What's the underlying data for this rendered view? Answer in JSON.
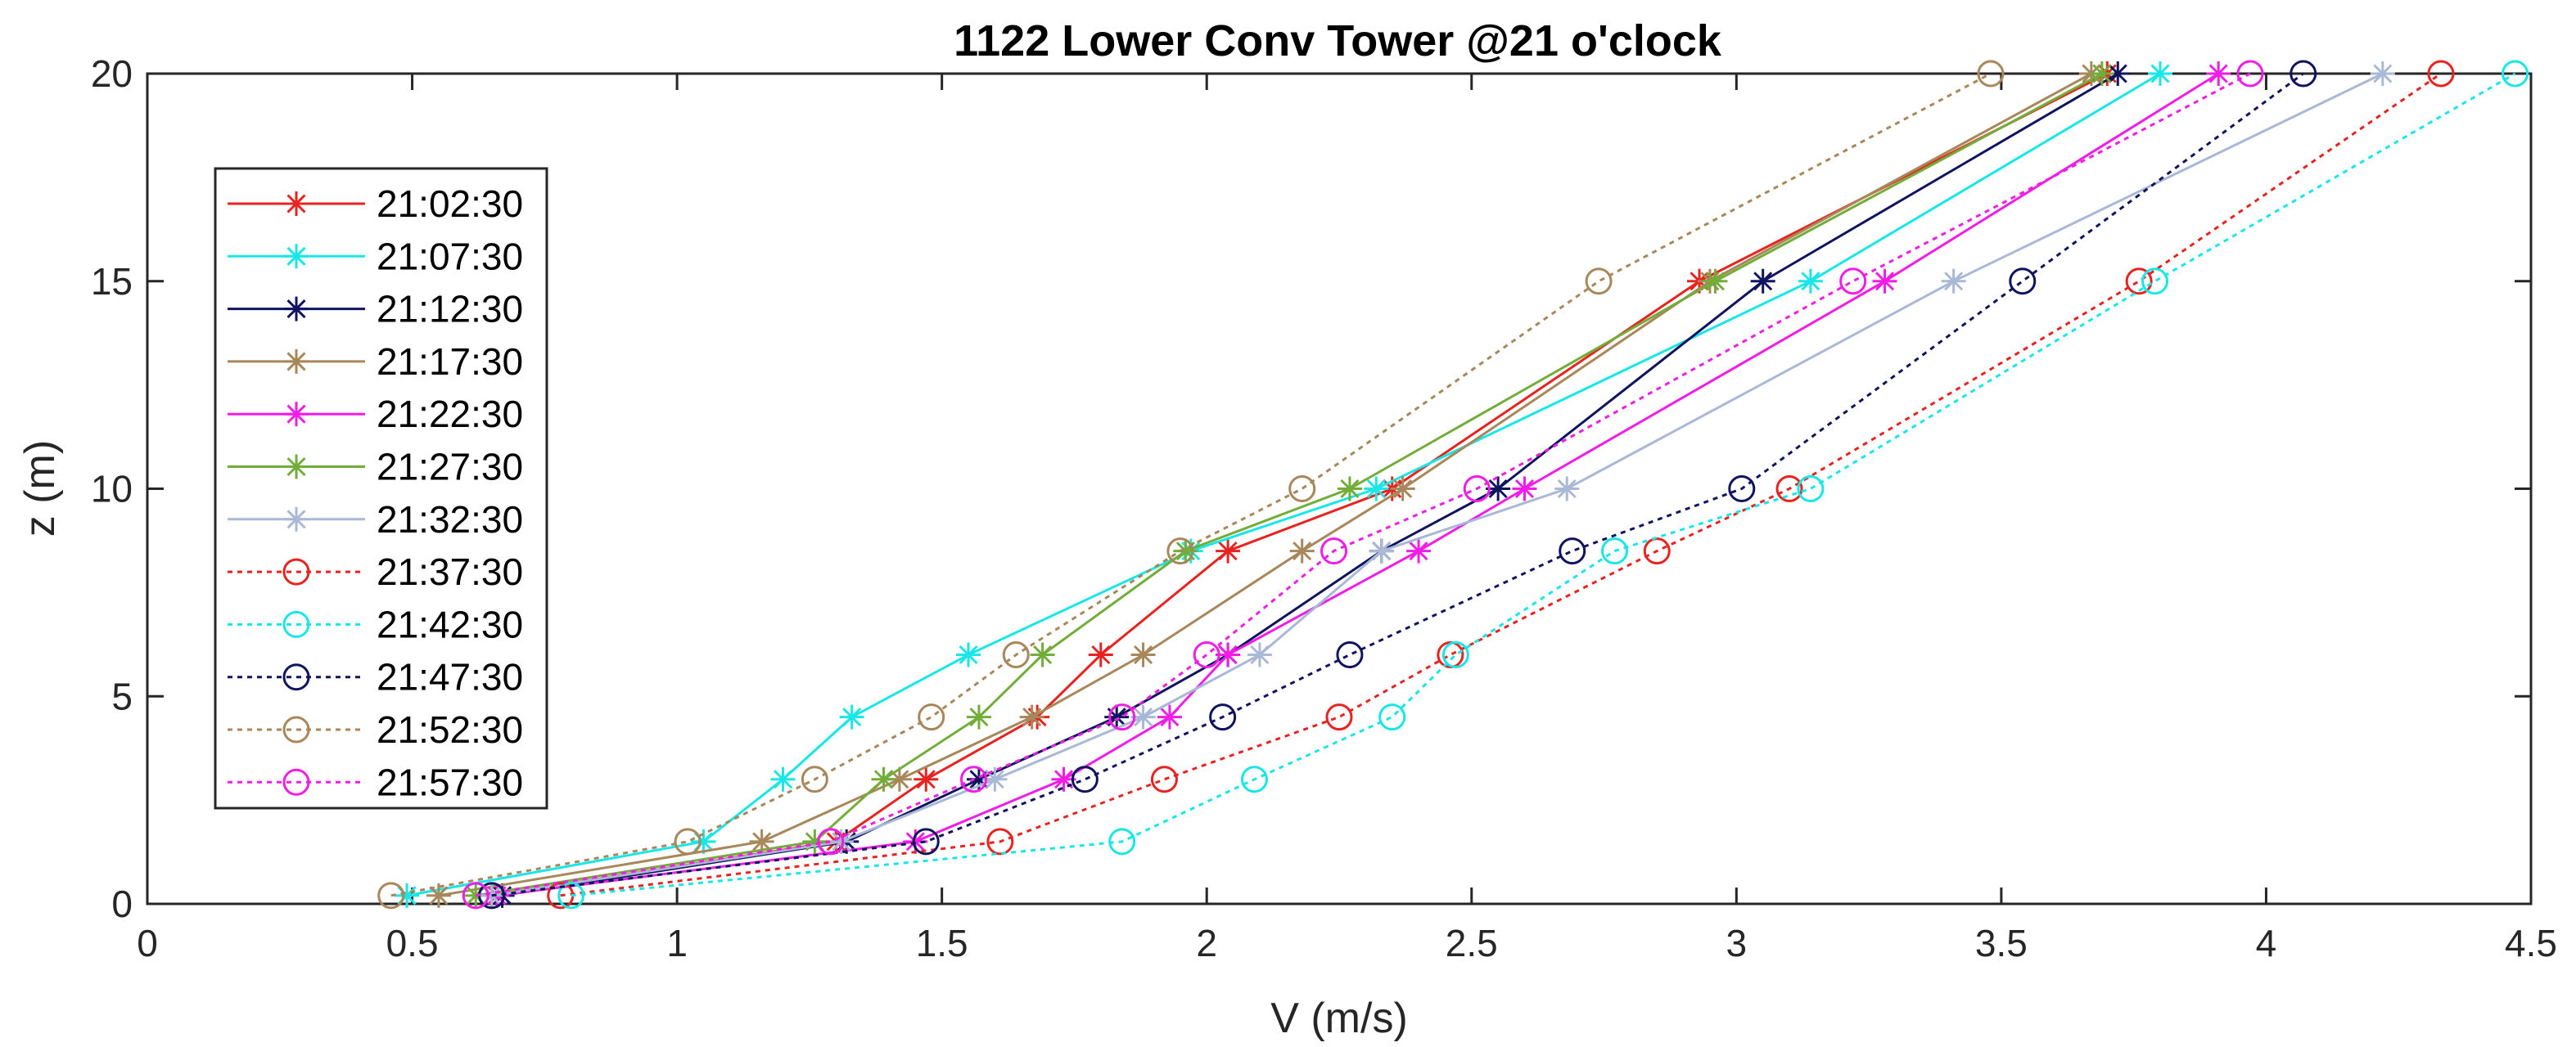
{
  "chart_data": {
    "type": "line",
    "title": "1122 Lower Conv Tower @21 o'clock",
    "xlabel": "V (m/s)",
    "ylabel": "z (m)",
    "xlim": [
      0,
      4.5
    ],
    "ylim": [
      0,
      20
    ],
    "xticks": [
      0,
      0.5,
      1,
      1.5,
      2,
      2.5,
      3,
      3.5,
      4,
      4.5
    ],
    "xtick_labels": [
      "0",
      "0.5",
      "1",
      "1.5",
      "2",
      "2.5",
      "3",
      "3.5",
      "4",
      "4.5"
    ],
    "yticks": [
      0,
      5,
      10,
      15,
      20
    ],
    "ytick_labels": [
      "0",
      "5",
      "10",
      "15",
      "20"
    ],
    "grid": false,
    "legend_position": "upper-left",
    "series": [
      {
        "name": "21:02:30",
        "color": "#e8231f",
        "marker": "asterisk",
        "dash": "solid",
        "points": [
          [
            0.65,
            0.2
          ],
          [
            1.3,
            1.5
          ],
          [
            1.47,
            3
          ],
          [
            1.68,
            4.5
          ],
          [
            1.8,
            6
          ],
          [
            2.04,
            8.5
          ],
          [
            2.35,
            10
          ],
          [
            2.93,
            15
          ],
          [
            3.7,
            20
          ]
        ]
      },
      {
        "name": "21:07:30",
        "color": "#19e6e6",
        "marker": "asterisk",
        "dash": "solid",
        "points": [
          [
            0.49,
            0.2
          ],
          [
            1.05,
            1.5
          ],
          [
            1.2,
            3
          ],
          [
            1.33,
            4.5
          ],
          [
            1.55,
            6
          ],
          [
            1.97,
            8.5
          ],
          [
            2.32,
            10
          ],
          [
            3.14,
            15
          ],
          [
            3.8,
            20
          ]
        ]
      },
      {
        "name": "21:12:30",
        "color": "#10145e",
        "marker": "asterisk",
        "dash": "solid",
        "points": [
          [
            0.67,
            0.2
          ],
          [
            1.32,
            1.5
          ],
          [
            1.57,
            3
          ],
          [
            1.83,
            4.5
          ],
          [
            2.04,
            6
          ],
          [
            2.33,
            8.5
          ],
          [
            2.55,
            10
          ],
          [
            3.05,
            15
          ],
          [
            3.72,
            20
          ]
        ]
      },
      {
        "name": "21:17:30",
        "color": "#a8875a",
        "marker": "asterisk",
        "dash": "solid",
        "points": [
          [
            0.55,
            0.2
          ],
          [
            1.16,
            1.5
          ],
          [
            1.42,
            3
          ],
          [
            1.67,
            4.5
          ],
          [
            1.88,
            6
          ],
          [
            2.18,
            8.5
          ],
          [
            2.37,
            10
          ],
          [
            2.95,
            15
          ],
          [
            3.67,
            20
          ]
        ]
      },
      {
        "name": "21:22:30",
        "color": "#f01de6",
        "marker": "asterisk",
        "dash": "solid",
        "points": [
          [
            0.66,
            0.2
          ],
          [
            1.45,
            1.5
          ],
          [
            1.73,
            3
          ],
          [
            1.93,
            4.5
          ],
          [
            2.04,
            6
          ],
          [
            2.4,
            8.5
          ],
          [
            2.6,
            10
          ],
          [
            3.28,
            15
          ],
          [
            3.91,
            20
          ]
        ]
      },
      {
        "name": "21:27:30",
        "color": "#72ad3a",
        "marker": "asterisk",
        "dash": "solid",
        "points": [
          [
            0.62,
            0.2
          ],
          [
            1.26,
            1.5
          ],
          [
            1.39,
            3
          ],
          [
            1.57,
            4.5
          ],
          [
            1.69,
            6
          ],
          [
            1.96,
            8.5
          ],
          [
            2.27,
            10
          ],
          [
            2.96,
            15
          ],
          [
            3.69,
            20
          ]
        ]
      },
      {
        "name": "21:32:30",
        "color": "#aab8d8",
        "marker": "asterisk",
        "dash": "solid",
        "points": [
          [
            0.65,
            0.2
          ],
          [
            1.31,
            1.5
          ],
          [
            1.6,
            3
          ],
          [
            1.88,
            4.5
          ],
          [
            2.1,
            6
          ],
          [
            2.33,
            8.5
          ],
          [
            2.68,
            10
          ],
          [
            3.41,
            15
          ],
          [
            4.22,
            20
          ]
        ]
      },
      {
        "name": "21:37:30",
        "color": "#e8231f",
        "marker": "circle",
        "dash": "dotted",
        "points": [
          [
            0.78,
            0.2
          ],
          [
            1.61,
            1.5
          ],
          [
            1.92,
            3
          ],
          [
            2.25,
            4.5
          ],
          [
            2.46,
            6
          ],
          [
            2.85,
            8.5
          ],
          [
            3.1,
            10
          ],
          [
            3.76,
            15
          ],
          [
            4.33,
            20
          ]
        ]
      },
      {
        "name": "21:42:30",
        "color": "#19e6e6",
        "marker": "circle",
        "dash": "dotted",
        "points": [
          [
            0.8,
            0.2
          ],
          [
            1.84,
            1.5
          ],
          [
            2.09,
            3
          ],
          [
            2.35,
            4.5
          ],
          [
            2.47,
            6
          ],
          [
            2.77,
            8.5
          ],
          [
            3.14,
            10
          ],
          [
            3.79,
            15
          ],
          [
            4.47,
            20
          ]
        ]
      },
      {
        "name": "21:47:30",
        "color": "#10145e",
        "marker": "circle",
        "dash": "dotted",
        "points": [
          [
            0.65,
            0.2
          ],
          [
            1.47,
            1.5
          ],
          [
            1.77,
            3
          ],
          [
            2.03,
            4.5
          ],
          [
            2.27,
            6
          ],
          [
            2.69,
            8.5
          ],
          [
            3.01,
            10
          ],
          [
            3.54,
            15
          ],
          [
            4.07,
            20
          ]
        ]
      },
      {
        "name": "21:52:30",
        "color": "#a8875a",
        "marker": "circle",
        "dash": "dotted",
        "points": [
          [
            0.46,
            0.2
          ],
          [
            1.02,
            1.5
          ],
          [
            1.26,
            3
          ],
          [
            1.48,
            4.5
          ],
          [
            1.64,
            6
          ],
          [
            1.95,
            8.5
          ],
          [
            2.18,
            10
          ],
          [
            2.74,
            15
          ],
          [
            3.48,
            20
          ]
        ]
      },
      {
        "name": "21:57:30",
        "color": "#f01de6",
        "marker": "circle",
        "dash": "dotted",
        "points": [
          [
            0.62,
            0.2
          ],
          [
            1.29,
            1.5
          ],
          [
            1.56,
            3
          ],
          [
            1.84,
            4.5
          ],
          [
            2.0,
            6
          ],
          [
            2.24,
            8.5
          ],
          [
            2.51,
            10
          ],
          [
            3.22,
            15
          ],
          [
            3.97,
            20
          ]
        ]
      }
    ]
  }
}
